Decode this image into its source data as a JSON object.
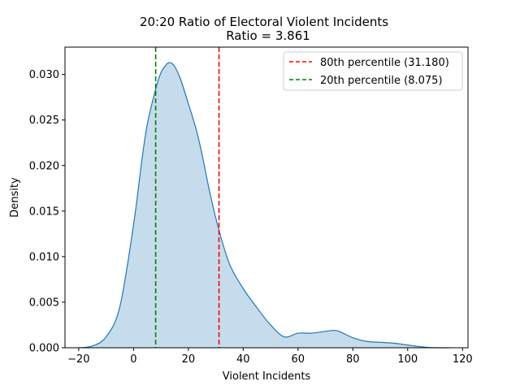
{
  "chart_data": {
    "type": "area",
    "title": "20:20 Ratio of Electoral Violent Incidents",
    "subtitle": "Ratio = 3.861",
    "xlabel": "Violent Incidents",
    "ylabel": "Density",
    "xlim": [
      -25,
      122
    ],
    "ylim": [
      0,
      0.033
    ],
    "xticks": [
      -20,
      0,
      20,
      40,
      60,
      80,
      100,
      120
    ],
    "xtick_labels": [
      "−20",
      "0",
      "20",
      "40",
      "60",
      "80",
      "100",
      "120"
    ],
    "yticks": [
      0,
      0.005,
      0.01,
      0.015,
      0.02,
      0.025,
      0.03
    ],
    "ytick_labels": [
      "0.000",
      "0.005",
      "0.010",
      "0.015",
      "0.020",
      "0.025",
      "0.030"
    ],
    "grid": false,
    "legend_position": "top-right",
    "density": {
      "x": [
        -20,
        -15,
        -10,
        -5,
        0,
        3,
        5,
        8,
        10,
        12,
        13,
        14,
        15,
        17,
        20,
        23,
        25,
        28,
        31,
        35,
        40,
        45,
        50,
        55,
        60,
        65,
        70,
        73,
        75,
        80,
        85,
        90,
        95,
        100,
        105,
        110,
        115
      ],
      "y": [
        0.0,
        0.0002,
        0.0012,
        0.0045,
        0.0135,
        0.0205,
        0.0245,
        0.0283,
        0.0302,
        0.0311,
        0.0313,
        0.0312,
        0.0309,
        0.0296,
        0.0268,
        0.0238,
        0.0212,
        0.0168,
        0.0131,
        0.0092,
        0.0065,
        0.0044,
        0.0025,
        0.0012,
        0.0016,
        0.0016,
        0.0018,
        0.0019,
        0.0018,
        0.0011,
        0.0007,
        0.0006,
        0.0005,
        0.0003,
        0.0001,
        0.0,
        0.0
      ],
      "color": "#1f77b4",
      "fill": "#c6dcec"
    },
    "percentile_lines": [
      {
        "label": "80th percentile (31.180)",
        "x": 31.18,
        "color": "#ff0000"
      },
      {
        "label": "20th percentile (8.075)",
        "x": 8.075,
        "color": "#008000"
      }
    ]
  }
}
